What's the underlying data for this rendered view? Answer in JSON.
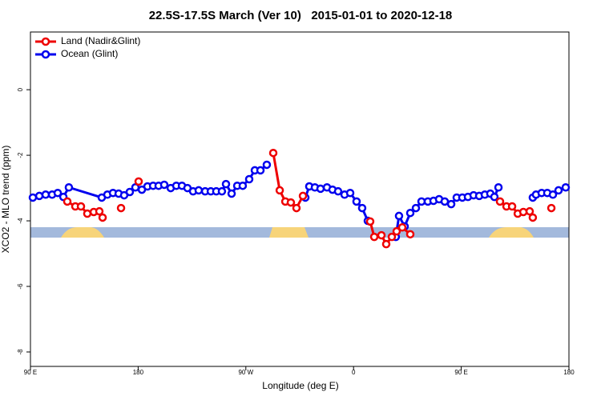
{
  "chart_data": {
    "type": "line",
    "title": "22.5S-17.5S March (Ver 10)   2015-01-01 to 2020-12-18",
    "x_label": "Longitude (deg E)",
    "y_label": "XCO2 - MLO trend (ppm)",
    "xlim": [
      90,
      540
    ],
    "xticks": [
      {
        "value": 90,
        "label": "90 E"
      },
      {
        "value": 180,
        "label": "180"
      },
      {
        "value": 270,
        "label": "90 W"
      },
      {
        "value": 360,
        "label": "0"
      },
      {
        "value": 450,
        "label": "90 E"
      },
      {
        "value": 540,
        "label": "180"
      }
    ],
    "ylim": [
      -8.44,
      1.76
    ],
    "yticks": [
      0,
      -2,
      -4,
      -6,
      -8
    ],
    "legend": "top-left",
    "series": [
      {
        "name": "Land (Nadir&Glint)",
        "color": "#ee0000",
        "x": [
          120.8,
          127.5,
          132.2,
          137.5,
          142.9,
          147.6,
          150.3,
          null,
          165.7,
          null,
          180.4,
          null,
          292.9,
          298.3,
          303.0,
          307.6,
          312.3,
          317.7,
          null,
          373.9,
          377.3,
          383.3,
          387.3,
          392.0,
          396.0,
          400.7,
          407.4,
          null,
          482.4,
          487.8,
          492.5,
          497.2,
          501.9,
          507.2,
          509.8,
          null,
          525.3
        ],
        "values": [
          -3.41,
          -3.56,
          -3.56,
          -3.78,
          -3.73,
          -3.71,
          -3.9,
          null,
          -3.61,
          null,
          -2.8,
          null,
          -1.93,
          -3.07,
          -3.41,
          -3.44,
          -3.61,
          -3.24,
          null,
          -4.02,
          -4.49,
          -4.44,
          -4.71,
          -4.49,
          -4.32,
          -4.2,
          -4.41,
          null,
          -3.41,
          -3.56,
          -3.56,
          -3.78,
          -3.73,
          -3.71,
          -3.9,
          null,
          -3.61
        ]
      },
      {
        "name": "Ocean (Glint)",
        "color": "#0000ee",
        "x": [
          92.0,
          97.4,
          102.7,
          108.1,
          112.8,
          117.5,
          122.1,
          149.6,
          154.3,
          159.0,
          163.7,
          168.3,
          173.0,
          177.7,
          183.1,
          187.8,
          192.5,
          197.1,
          201.8,
          207.2,
          211.9,
          216.6,
          221.2,
          225.9,
          230.6,
          236.0,
          240.7,
          245.3,
          250.0,
          253.4,
          258.1,
          262.8,
          267.4,
          272.8,
          277.5,
          282.2,
          287.5,
          null,
          319.7,
          323.0,
          327.7,
          332.4,
          337.8,
          342.4,
          347.1,
          352.5,
          357.2,
          362.5,
          367.2,
          371.9,
          null,
          395.3,
          398.0,
          402.7,
          407.4,
          412.1,
          416.8,
          422.1,
          426.8,
          431.5,
          436.2,
          441.6,
          446.2,
          450.9,
          455.6,
          460.3,
          465.0,
          469.7,
          474.3,
          477.7,
          481.1,
          null,
          509.8,
          512.5,
          517.2,
          521.9,
          526.6,
          531.3,
          537.3
        ],
        "values": [
          -3.29,
          -3.24,
          -3.2,
          -3.2,
          -3.15,
          -3.27,
          -2.98,
          -3.29,
          -3.2,
          -3.15,
          -3.17,
          -3.22,
          -3.12,
          -2.98,
          -3.05,
          -2.95,
          -2.93,
          -2.93,
          -2.9,
          -3.0,
          -2.93,
          -2.93,
          -3.0,
          -3.1,
          -3.07,
          -3.1,
          -3.1,
          -3.1,
          -3.1,
          -2.88,
          -3.17,
          -2.93,
          -2.93,
          -2.73,
          -2.46,
          -2.46,
          -2.29,
          null,
          -3.29,
          -2.95,
          -2.98,
          -3.02,
          -2.98,
          -3.05,
          -3.1,
          -3.2,
          -3.15,
          -3.41,
          -3.61,
          -4.0,
          null,
          -4.49,
          -3.85,
          -4.17,
          -3.76,
          -3.61,
          -3.41,
          -3.41,
          -3.39,
          -3.34,
          -3.41,
          -3.49,
          -3.29,
          -3.29,
          -3.27,
          -3.22,
          -3.24,
          -3.2,
          -3.17,
          -3.27,
          -2.98,
          null,
          -3.29,
          -3.2,
          -3.15,
          -3.15,
          -3.2,
          -3.07,
          -2.98
        ]
      }
    ]
  }
}
